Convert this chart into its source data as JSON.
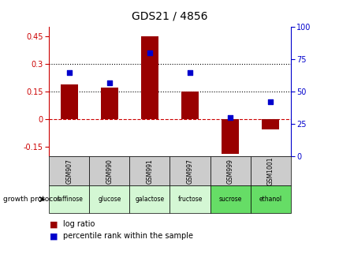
{
  "title": "GDS21 / 4856",
  "samples": [
    "GSM907",
    "GSM990",
    "GSM991",
    "GSM997",
    "GSM999",
    "GSM1001"
  ],
  "log_ratios": [
    0.19,
    0.17,
    0.45,
    0.15,
    -0.19,
    -0.055
  ],
  "percentile_ranks": [
    65,
    57,
    80,
    65,
    30,
    42
  ],
  "protocols": [
    "raffinose",
    "glucose",
    "galactose",
    "fructose",
    "sucrose",
    "ethanol"
  ],
  "protocol_colors": [
    "#d4f7d4",
    "#d4f7d4",
    "#d4f7d4",
    "#d4f7d4",
    "#66dd66",
    "#66dd66"
  ],
  "bar_color": "#990000",
  "dot_color": "#0000cc",
  "ylim_left": [
    -0.2,
    0.5
  ],
  "ylim_right": [
    0,
    100
  ],
  "yticks_left": [
    -0.15,
    0.0,
    0.15,
    0.3,
    0.45
  ],
  "yticks_right": [
    0,
    25,
    50,
    75,
    100
  ],
  "hlines_dotted": [
    0.15,
    0.3
  ],
  "hline_zero_color": "#cc0000",
  "left_tick_color": "#cc0000",
  "right_tick_color": "#0000cc",
  "header_bg": "#cccccc",
  "bar_width": 0.45,
  "title_fontsize": 10,
  "tick_fontsize": 7,
  "sample_fontsize": 5.5,
  "proto_fontsize": 5.5,
  "legend_fontsize": 7
}
